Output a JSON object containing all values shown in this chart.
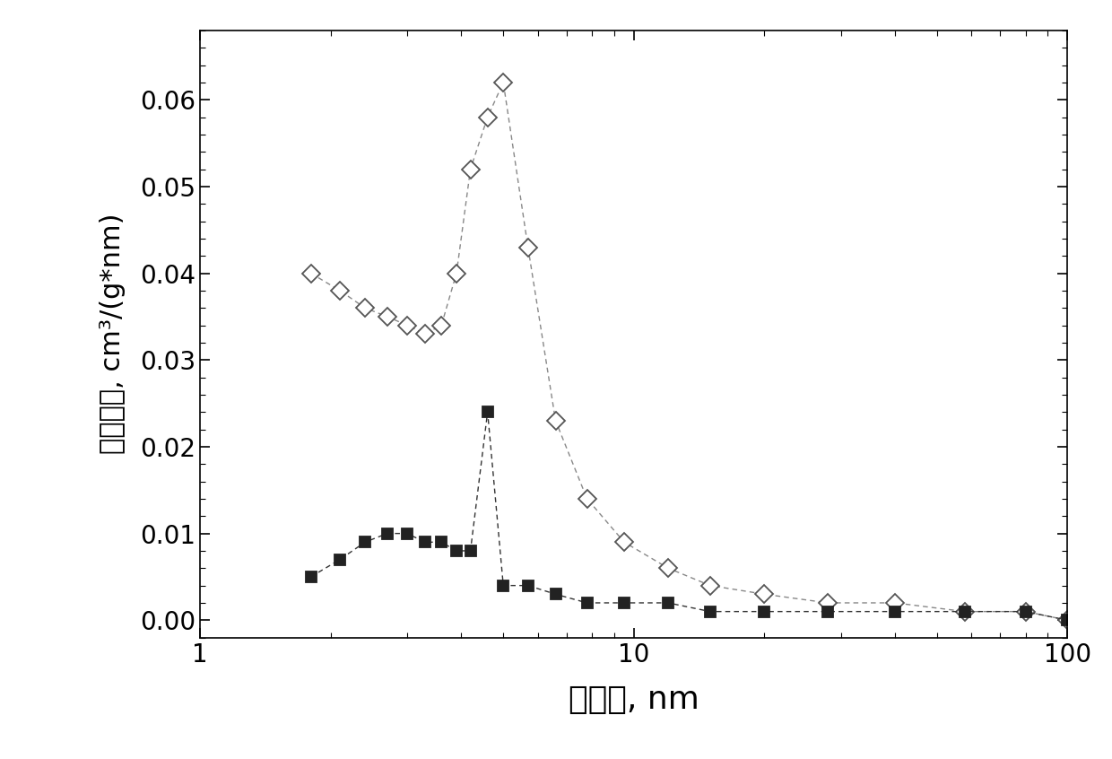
{
  "xlabel": "孔直径, nm",
  "ylabel": "孔容微分, cm³/(g*nm)",
  "xlim": [
    1,
    100
  ],
  "ylim": [
    -0.002,
    0.068
  ],
  "background_color": "#ffffff",
  "series_diamond": {
    "x": [
      1.8,
      2.1,
      2.4,
      2.7,
      3.0,
      3.3,
      3.6,
      3.9,
      4.2,
      4.6,
      5.0,
      5.7,
      6.6,
      7.8,
      9.5,
      12.0,
      15.0,
      20.0,
      28.0,
      40.0,
      58.0,
      80.0,
      100.0
    ],
    "y": [
      0.04,
      0.038,
      0.036,
      0.035,
      0.034,
      0.033,
      0.034,
      0.04,
      0.052,
      0.058,
      0.062,
      0.043,
      0.023,
      0.014,
      0.009,
      0.006,
      0.004,
      0.003,
      0.002,
      0.002,
      0.001,
      0.001,
      0.0
    ],
    "color": "#888888",
    "marker": "D",
    "markersize": 10,
    "markerfacecolor": "white",
    "markeredgecolor": "#555555",
    "linestyle": "--"
  },
  "series_square": {
    "x": [
      1.8,
      2.1,
      2.4,
      2.7,
      3.0,
      3.3,
      3.6,
      3.9,
      4.2,
      4.6,
      5.0,
      5.7,
      6.6,
      7.8,
      9.5,
      12.0,
      15.0,
      20.0,
      28.0,
      40.0,
      58.0,
      80.0,
      100.0
    ],
    "y": [
      0.005,
      0.007,
      0.009,
      0.01,
      0.01,
      0.009,
      0.009,
      0.008,
      0.008,
      0.024,
      0.004,
      0.004,
      0.003,
      0.002,
      0.002,
      0.002,
      0.001,
      0.001,
      0.001,
      0.001,
      0.001,
      0.001,
      0.0
    ],
    "color": "#333333",
    "marker": "s",
    "markersize": 9,
    "markerfacecolor": "#222222",
    "markeredgecolor": "#222222",
    "linestyle": "--"
  },
  "yticks": [
    0.0,
    0.01,
    0.02,
    0.03,
    0.04,
    0.05,
    0.06
  ],
  "xticks": [
    1,
    10,
    100
  ],
  "xtick_labels": [
    "1",
    "10",
    "100"
  ]
}
